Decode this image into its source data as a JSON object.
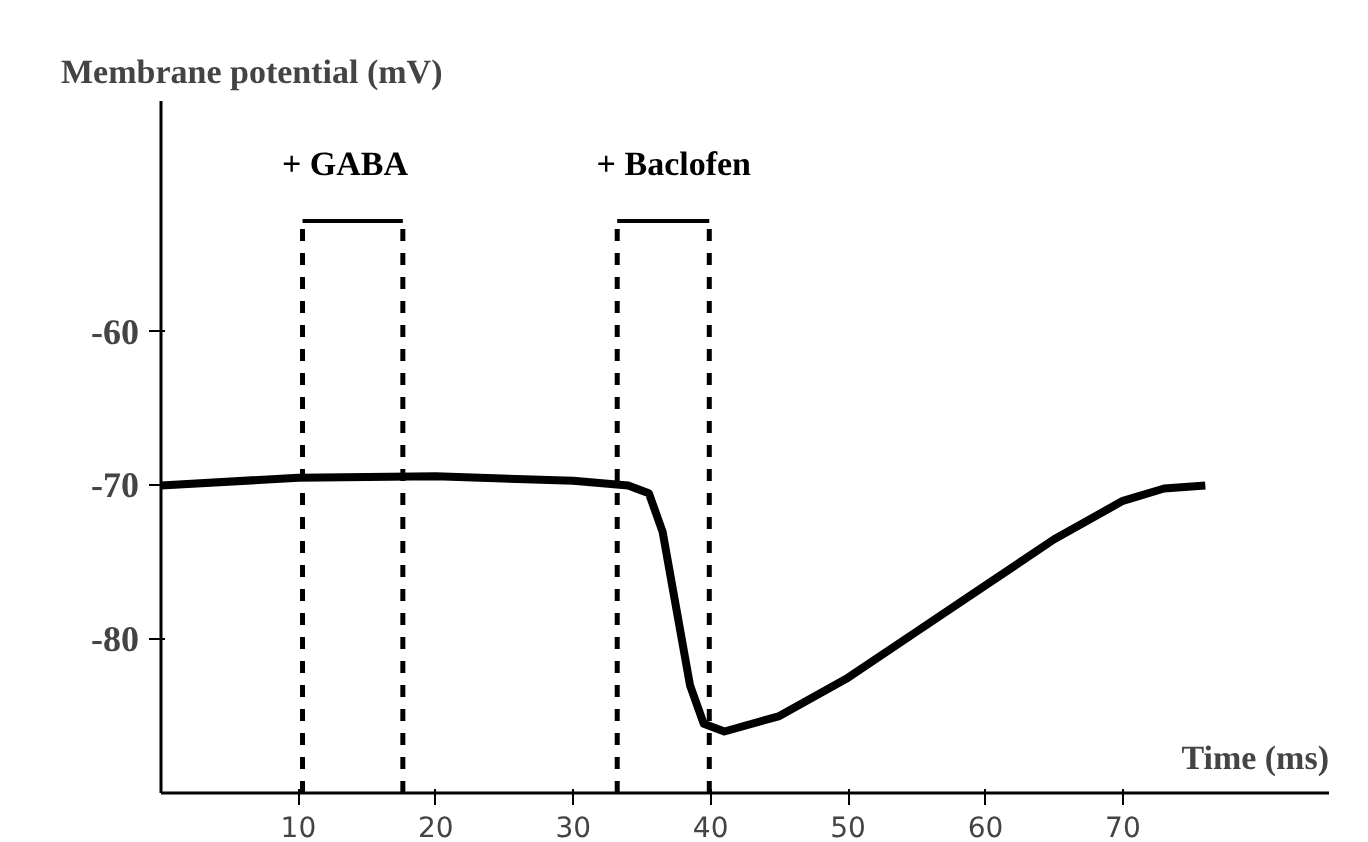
{
  "chart_data": {
    "type": "line",
    "xlabel": "Time (ms)",
    "ylabel": "Membrane potential (mV)",
    "x": [
      0,
      10,
      20,
      30,
      34,
      35.5,
      36.5,
      37.5,
      38.5,
      39.5,
      41,
      45,
      50,
      55,
      60,
      65,
      70,
      73,
      76
    ],
    "series": [
      {
        "color": "#000000",
        "values": [
          -70,
          -69.5,
          -69.4,
          -69.7,
          -70,
          -70.5,
          -73,
          -78,
          -83,
          -85.5,
          -86,
          -85,
          -82.5,
          -79.5,
          -76.5,
          -73.5,
          -71,
          -70.2,
          -70
        ]
      }
    ],
    "xlim": [
      0,
      85
    ],
    "xticks": [
      10,
      20,
      30,
      40,
      50,
      60,
      70
    ],
    "ylim": [
      -90,
      -45
    ],
    "yticks": [
      -60,
      -70,
      -80
    ],
    "ref_lines": [
      {
        "axis": "x",
        "value": 10.3,
        "line_style": "dashed"
      },
      {
        "axis": "x",
        "value": 17.6,
        "line_style": "dashed"
      },
      {
        "axis": "x",
        "value": 33.2,
        "line_style": "dashed"
      },
      {
        "axis": "x",
        "value": 39.9,
        "line_style": "dashed"
      }
    ],
    "annotations": [
      {
        "text": "+ GABA",
        "x": 10.3,
        "y": -52.8
      },
      {
        "text": "+ Baclofen",
        "x": 33.2,
        "y": -52.8
      }
    ],
    "line_style": "solid"
  }
}
